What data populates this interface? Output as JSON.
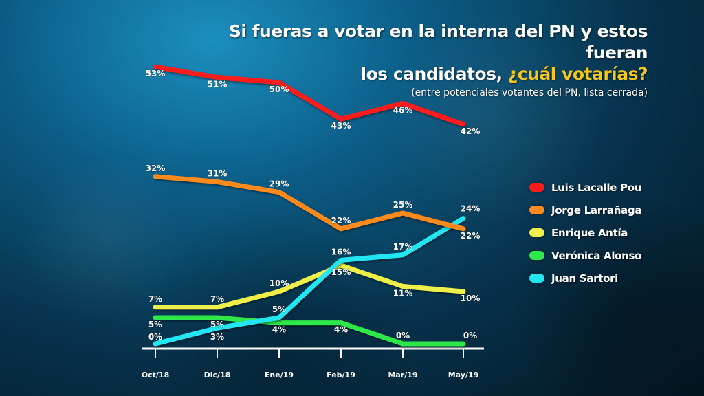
{
  "title": {
    "line1": "Si fueras a votar en la interna del PN y estos fueran",
    "line2_prefix": "los candidatos, ",
    "line2_highlight": "¿cuál votarías?",
    "subtitle": "(entre potenciales votantes del PN, lista cerrada)"
  },
  "colors": {
    "highlight": "#f3c81a",
    "axis": "#ffffff"
  },
  "chart_data": {
    "type": "line",
    "title": "Si fueras a votar en la interna del PN y estos fueran los candidatos, ¿cuál votarías?",
    "subtitle": "(entre potenciales votantes del PN, lista cerrada)",
    "categories": [
      "Oct/18",
      "Dic/18",
      "Ene/19",
      "Feb/19",
      "Mar/19",
      "May/19"
    ],
    "xlabel": "",
    "ylabel": "",
    "ylim": [
      0,
      53
    ],
    "grid": false,
    "legend_position": "right",
    "series": [
      {
        "name": "Luis Lacalle Pou",
        "color": "#ff1a1a",
        "values": [
          53,
          51,
          50,
          43,
          46,
          42
        ],
        "labels": [
          "53%",
          "51%",
          "50%",
          "43%",
          "46%",
          "42%"
        ]
      },
      {
        "name": "Jorge Larrañaga",
        "color": "#ff8a1f",
        "values": [
          32,
          31,
          29,
          22,
          25,
          22
        ],
        "labels": [
          "32%",
          "31%",
          "29%",
          "22%",
          "25%",
          "22%"
        ]
      },
      {
        "name": "Enrique Antía",
        "color": "#eef04a",
        "values": [
          7,
          7,
          10,
          15,
          11,
          10
        ],
        "labels": [
          "7%",
          "7%",
          "10%",
          "15%",
          "11%",
          "10%"
        ]
      },
      {
        "name": "Verónica Alonso",
        "color": "#2ee84a",
        "values": [
          5,
          5,
          4,
          4,
          0,
          0
        ],
        "labels": [
          "5%",
          "5%",
          "4%",
          "4%",
          "0%",
          "0%"
        ]
      },
      {
        "name": "Juan Sartori",
        "color": "#22e6f2",
        "values": [
          0,
          3,
          5,
          16,
          17,
          24
        ],
        "labels": [
          "0%",
          "3%",
          "5%",
          "16%",
          "17%",
          "24%"
        ]
      }
    ]
  }
}
